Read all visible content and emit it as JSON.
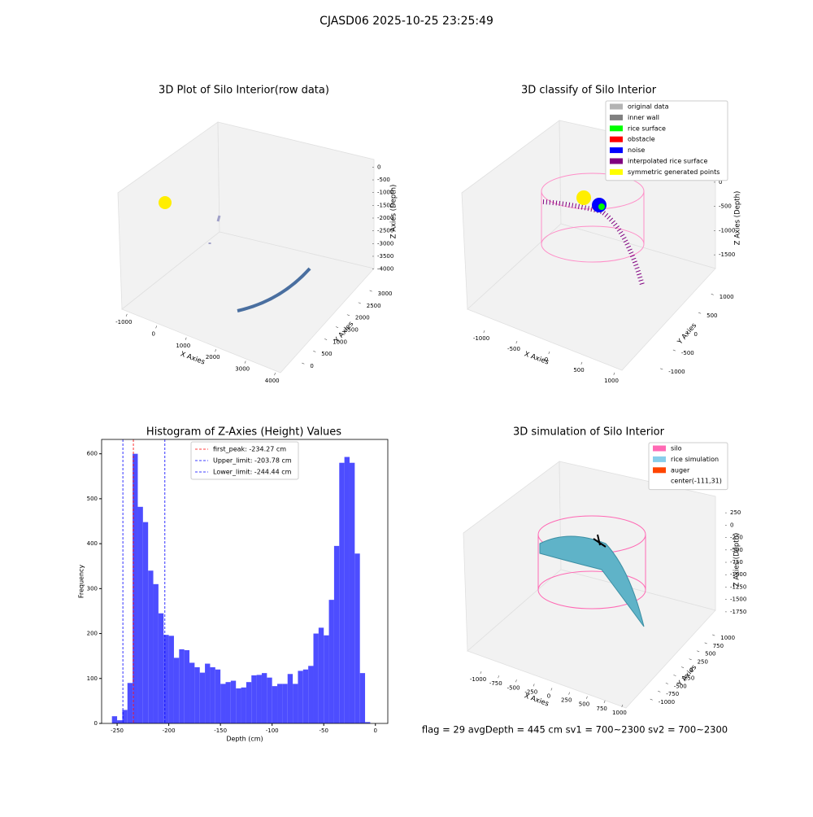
{
  "title": "CJASD06 2025-10-25 23:25:49",
  "footer": "flag = 29  avgDepth = 445 cm  sv1 = 700~2300  sv2 = 700~2300",
  "chart_data": [
    {
      "type": "scatter3d",
      "title": "3D Plot of Silo Interior(row data)",
      "xlabel": "X Axies",
      "ylabel": "Y Axies",
      "zlabel": "Z Axies (Depth)",
      "xlim": [
        -1200,
        4200
      ],
      "xticks": [
        -1000,
        0,
        1000,
        2000,
        3000,
        4000
      ],
      "ylim": [
        -300,
        3300
      ],
      "yticks": [
        0,
        500,
        1000,
        1500,
        2000,
        2500,
        3000
      ],
      "zlim": [
        -4300,
        300
      ],
      "zticks": [
        0,
        -500,
        -1000,
        -1500,
        -2000,
        -2500,
        -3000,
        -3500,
        -4000
      ]
    },
    {
      "type": "scatter3d",
      "title": "3D classify of Silo Interior",
      "xlabel": "X Axies",
      "ylabel": "Y Axies",
      "zlabel": "Z Axies (Depth)",
      "xlim": [
        -1200,
        1200
      ],
      "xticks": [
        -1000,
        -500,
        0,
        500,
        1000
      ],
      "ylim": [
        -1200,
        1200
      ],
      "yticks": [
        -1000,
        -500,
        0,
        500,
        1000
      ],
      "zlim": [
        -1800,
        200
      ],
      "zticks": [
        0,
        -500,
        -1000,
        -1500
      ],
      "legend": [
        {
          "name": "original data",
          "color": "#b3b3b3"
        },
        {
          "name": "inner wall",
          "color": "#808080"
        },
        {
          "name": "rice surface",
          "color": "#00ff00"
        },
        {
          "name": "obstacle",
          "color": "#ff0000"
        },
        {
          "name": "noise",
          "color": "#0000ff"
        },
        {
          "name": "interpolated rice surface",
          "color": "#800080"
        },
        {
          "name": "symmetric generated points",
          "color": "#ffff00"
        }
      ]
    },
    {
      "type": "histogram",
      "title": "Histogram of Z-Axies (Height) Values",
      "xlabel": "Depth (cm)",
      "ylabel": "Frequency",
      "color": "#4d4dff",
      "bins": [
        -255,
        -250,
        -245,
        -240,
        -235,
        -230,
        -225,
        -220,
        -215,
        -210,
        -205,
        -200,
        -195,
        -190,
        -185,
        -180,
        -175,
        -170,
        -165,
        -160,
        -155,
        -150,
        -145,
        -140,
        -135,
        -130,
        -125,
        -120,
        -115,
        -110,
        -105,
        -100,
        -95,
        -90,
        -85,
        -80,
        -75,
        -70,
        -65,
        -60,
        -55,
        -50,
        -45,
        -40,
        -35,
        -30,
        -25,
        -20,
        -15,
        -10,
        -5,
        0
      ],
      "values": [
        16,
        7,
        30,
        90,
        600,
        482,
        448,
        340,
        310,
        245,
        197,
        195,
        146,
        165,
        163,
        135,
        125,
        113,
        133,
        125,
        120,
        88,
        92,
        95,
        78,
        80,
        92,
        107,
        108,
        112,
        102,
        83,
        88,
        88,
        110,
        88,
        117,
        120,
        128,
        200,
        213,
        196,
        275,
        395,
        580,
        593,
        580,
        378,
        112,
        3,
        0
      ],
      "xlim": [
        -265,
        12
      ],
      "xticks": [
        -250,
        -200,
        -150,
        -100,
        -50,
        0
      ],
      "ylim": [
        0,
        632
      ],
      "yticks": [
        0,
        100,
        200,
        300,
        400,
        500,
        600
      ],
      "vlines": [
        {
          "value": -234.27,
          "label": "first_peak: -234.27 cm",
          "color": "#ff0000"
        },
        {
          "value": -203.78,
          "label": "Upper_limit: -203.78 cm",
          "color": "#0000ff"
        },
        {
          "value": -244.44,
          "label": "Lower_limit: -244.44 cm",
          "color": "#0000ff"
        }
      ]
    },
    {
      "type": "scatter3d",
      "title": "3D simulation of Silo Interior",
      "xlabel": "X Axies",
      "ylabel": "Y Axies",
      "zlabel": "Z Axies (Depth)",
      "xlim": [
        -1150,
        1150
      ],
      "xticks": [
        -1000,
        -750,
        -500,
        -250,
        0,
        250,
        500,
        750,
        1000
      ],
      "ylim": [
        -1150,
        1150
      ],
      "yticks": [
        -1000,
        -750,
        -500,
        -250,
        0,
        250,
        500,
        750,
        1000
      ],
      "zlim": [
        -1900,
        450
      ],
      "zticks": [
        250,
        0,
        -250,
        -500,
        -750,
        -1000,
        -1250,
        -1500,
        -1750
      ],
      "legend": [
        {
          "name": "silo",
          "color": "#ff69b4"
        },
        {
          "name": "rice simulation",
          "color": "#87ceeb"
        },
        {
          "name": "auger",
          "color": "#ff4500"
        },
        {
          "name": "center(-111,31)",
          "color": "#ffffff"
        }
      ]
    }
  ]
}
